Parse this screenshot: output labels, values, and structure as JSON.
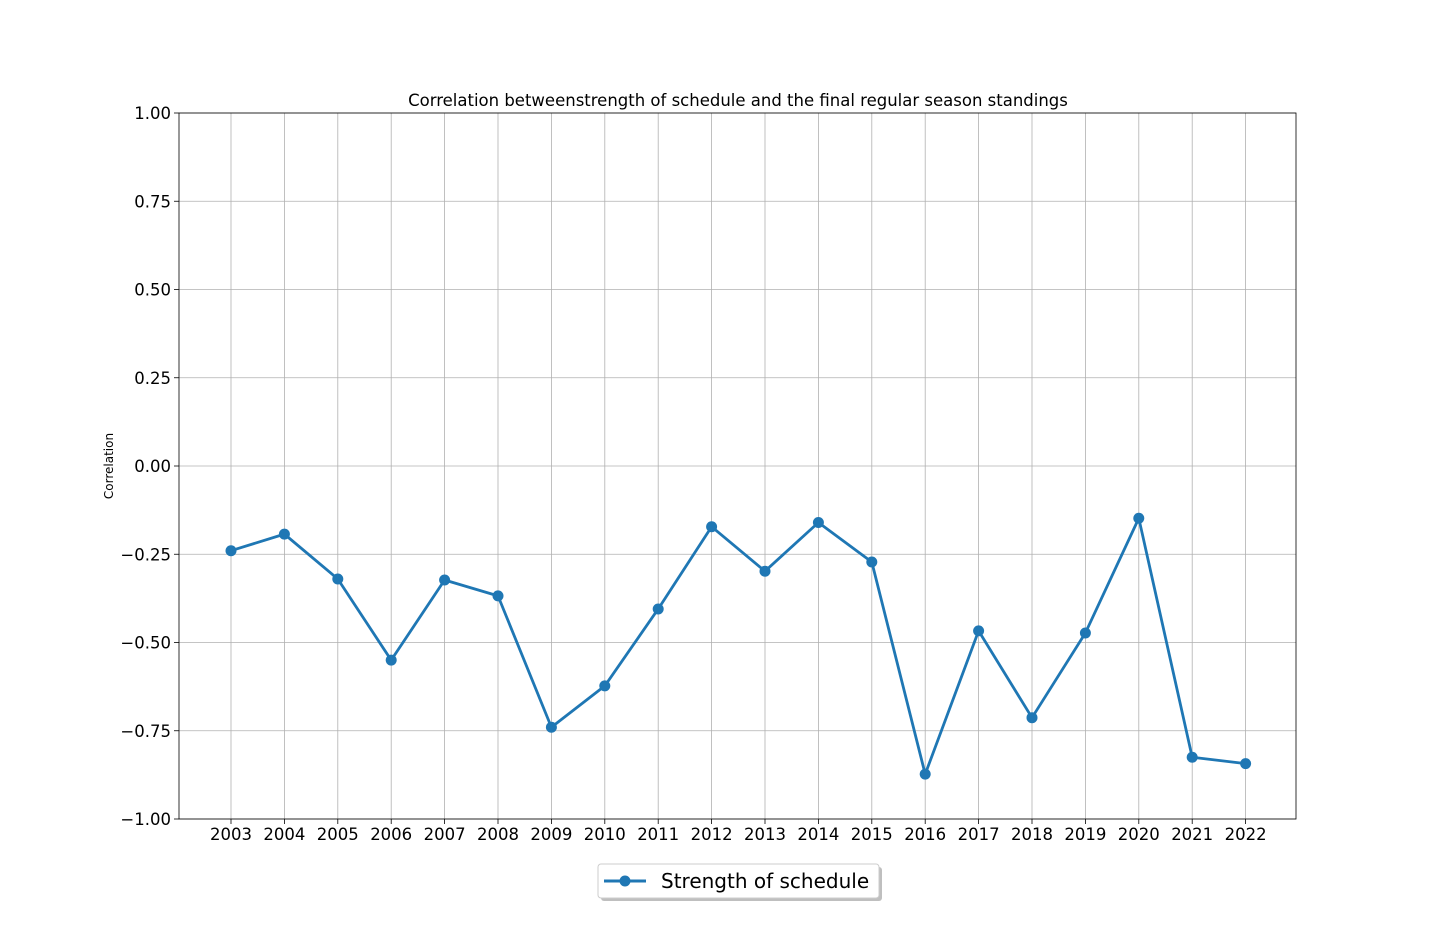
{
  "chart_data": {
    "type": "line",
    "title": "Correlation betweenstrength of schedule and the final regular season standings",
    "xlabel": "",
    "ylabel": "Correlation",
    "categories": [
      "2003",
      "2004",
      "2005",
      "2006",
      "2007",
      "2008",
      "2009",
      "2010",
      "2011",
      "2012",
      "2013",
      "2014",
      "2015",
      "2016",
      "2017",
      "2018",
      "2019",
      "2020",
      "2021",
      "2022"
    ],
    "yticks": [
      "1.00",
      "0.75",
      "0.50",
      "0.25",
      "0.00",
      "−0.25",
      "−0.50",
      "−0.75",
      "−1.00"
    ],
    "ylim": [
      -1,
      1
    ],
    "grid": true,
    "legend_position": "below-center",
    "series": [
      {
        "name": "Strength of schedule",
        "color": "#1f77b4",
        "values": [
          -0.24,
          -0.193,
          -0.32,
          -0.55,
          -0.323,
          -0.368,
          -0.74,
          -0.623,
          -0.405,
          -0.172,
          -0.298,
          -0.16,
          -0.272,
          -0.873,
          -0.467,
          -0.713,
          -0.473,
          -0.148,
          -0.825,
          -0.843
        ]
      }
    ]
  }
}
